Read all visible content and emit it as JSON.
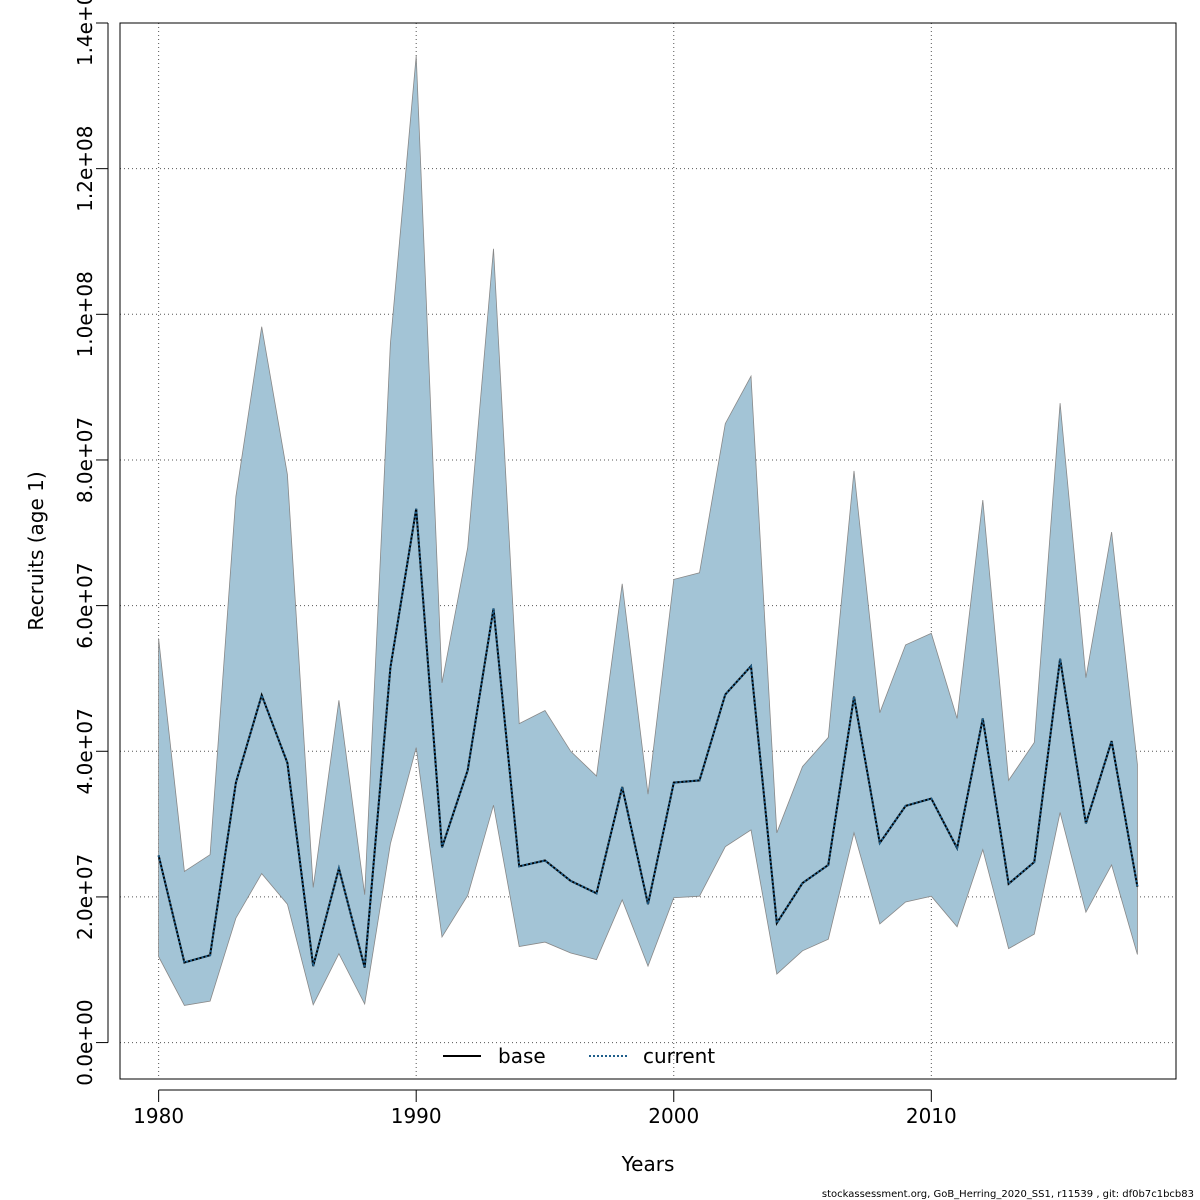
{
  "chart_data": {
    "type": "area",
    "xlabel": "Years",
    "ylabel": "Recruits (age 1)",
    "xlim": [
      1978.5,
      2019.5
    ],
    "ylim": [
      -5000000,
      140000000
    ],
    "x_ticks": [
      1980,
      1990,
      2000,
      2010
    ],
    "x_tick_labels": [
      "1980",
      "1990",
      "2000",
      "2010"
    ],
    "y_ticks": [
      0,
      20000000,
      40000000,
      60000000,
      80000000,
      100000000,
      120000000,
      140000000
    ],
    "y_tick_labels": [
      "0.0e+00",
      "2.0e+07",
      "4.0e+07",
      "6.0e+07",
      "8.0e+07",
      "1.0e+08",
      "1.2e+08",
      "1.4e+08"
    ],
    "grid": true,
    "legend_position": "bottom-center",
    "band_color": "#a3c4d6",
    "band_edge_color": "#888888",
    "x": [
      1980,
      1981,
      1982,
      1983,
      1984,
      1985,
      1986,
      1987,
      1988,
      1989,
      1990,
      1991,
      1992,
      1993,
      1994,
      1995,
      1996,
      1997,
      1998,
      1999,
      2000,
      2001,
      2002,
      2003,
      2004,
      2005,
      2006,
      2007,
      2008,
      2009,
      2010,
      2011,
      2012,
      2013,
      2014,
      2015,
      2016,
      2017,
      2018
    ],
    "band_upper": [
      55500000,
      23500000,
      25800000,
      75000000,
      98300000,
      78000000,
      21300000,
      47000000,
      20300000,
      96000000,
      135500000,
      49400000,
      68000000,
      109000000,
      43800000,
      45600000,
      40000000,
      36600000,
      63000000,
      34100000,
      63600000,
      64500000,
      85000000,
      91500000,
      28800000,
      37900000,
      41900000,
      78500000,
      45300000,
      54600000,
      56200000,
      44500000,
      74500000,
      36000000,
      41200000,
      87800000,
      50100000,
      70100000,
      38200000
    ],
    "band_lower": [
      11800000,
      5100000,
      5700000,
      17100000,
      23200000,
      19000000,
      5200000,
      12200000,
      5300000,
      27300000,
      40500000,
      14500000,
      20200000,
      32600000,
      13200000,
      13800000,
      12300000,
      11400000,
      19600000,
      10500000,
      19900000,
      20100000,
      26900000,
      29200000,
      9400000,
      12600000,
      14200000,
      28800000,
      16300000,
      19300000,
      20100000,
      15900000,
      26500000,
      12900000,
      14900000,
      31600000,
      17900000,
      24400000,
      12100000
    ],
    "series": [
      {
        "name": "base",
        "color": "#000000",
        "style": "solid",
        "values": [
          25700000,
          11000000,
          12000000,
          35700000,
          47700000,
          38400000,
          10500000,
          23900000,
          10300000,
          51500000,
          73300000,
          26800000,
          37400000,
          59600000,
          24200000,
          25000000,
          22200000,
          20500000,
          35100000,
          19000000,
          35700000,
          36000000,
          47800000,
          51700000,
          16400000,
          21900000,
          24400000,
          47500000,
          27400000,
          32500000,
          33500000,
          26700000,
          44500000,
          21800000,
          24800000,
          52700000,
          30100000,
          41400000,
          21400000
        ]
      },
      {
        "name": "current",
        "color": "#1f5f8b",
        "style": "dotted",
        "values": [
          25700000,
          11000000,
          12000000,
          35700000,
          47700000,
          38400000,
          10500000,
          23900000,
          10300000,
          51500000,
          73300000,
          26800000,
          37400000,
          59600000,
          24200000,
          25000000,
          22200000,
          20500000,
          35100000,
          19000000,
          35700000,
          36000000,
          47800000,
          51700000,
          16400000,
          21900000,
          24400000,
          47500000,
          27400000,
          32500000,
          33500000,
          26700000,
          44500000,
          21800000,
          24800000,
          52700000,
          30100000,
          41400000,
          21400000
        ]
      }
    ]
  },
  "footer": "stockassessment.org, GoB_Herring_2020_SS1, r11539 , git: df0b7c1bcb83"
}
